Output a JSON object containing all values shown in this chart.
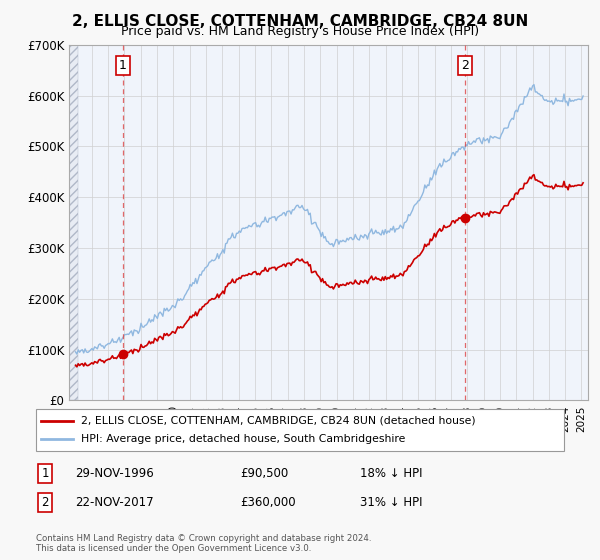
{
  "title": "2, ELLIS CLOSE, COTTENHAM, CAMBRIDGE, CB24 8UN",
  "subtitle": "Price paid vs. HM Land Registry's House Price Index (HPI)",
  "ylim": [
    0,
    700000
  ],
  "yticks": [
    0,
    100000,
    200000,
    300000,
    400000,
    500000,
    600000,
    700000
  ],
  "ytick_labels": [
    "£0",
    "£100K",
    "£200K",
    "£300K",
    "£400K",
    "£500K",
    "£600K",
    "£700K"
  ],
  "xlim_start": 1993.6,
  "xlim_end": 2025.4,
  "sale1_x": 1996.91,
  "sale1_y": 90500,
  "sale1_label": "1",
  "sale2_x": 2017.89,
  "sale2_y": 360000,
  "sale2_label": "2",
  "hpi_color": "#90b8e0",
  "sale_color": "#cc0000",
  "marker_color": "#cc0000",
  "grid_color": "#d0d0d0",
  "fig_background": "#f8f8f8",
  "plot_background": "#f0f4fb",
  "hatch_background": "#e8ecf4",
  "legend_line1": "2, ELLIS CLOSE, COTTENHAM, CAMBRIDGE, CB24 8UN (detached house)",
  "legend_line2": "HPI: Average price, detached house, South Cambridgeshire",
  "note1_label": "1",
  "note1_date": "29-NOV-1996",
  "note1_price": "£90,500",
  "note1_hpi": "18% ↓ HPI",
  "note2_label": "2",
  "note2_date": "22-NOV-2017",
  "note2_price": "£360,000",
  "note2_hpi": "31% ↓ HPI",
  "copyright": "Contains HM Land Registry data © Crown copyright and database right 2024.\nThis data is licensed under the Open Government Licence v3.0."
}
